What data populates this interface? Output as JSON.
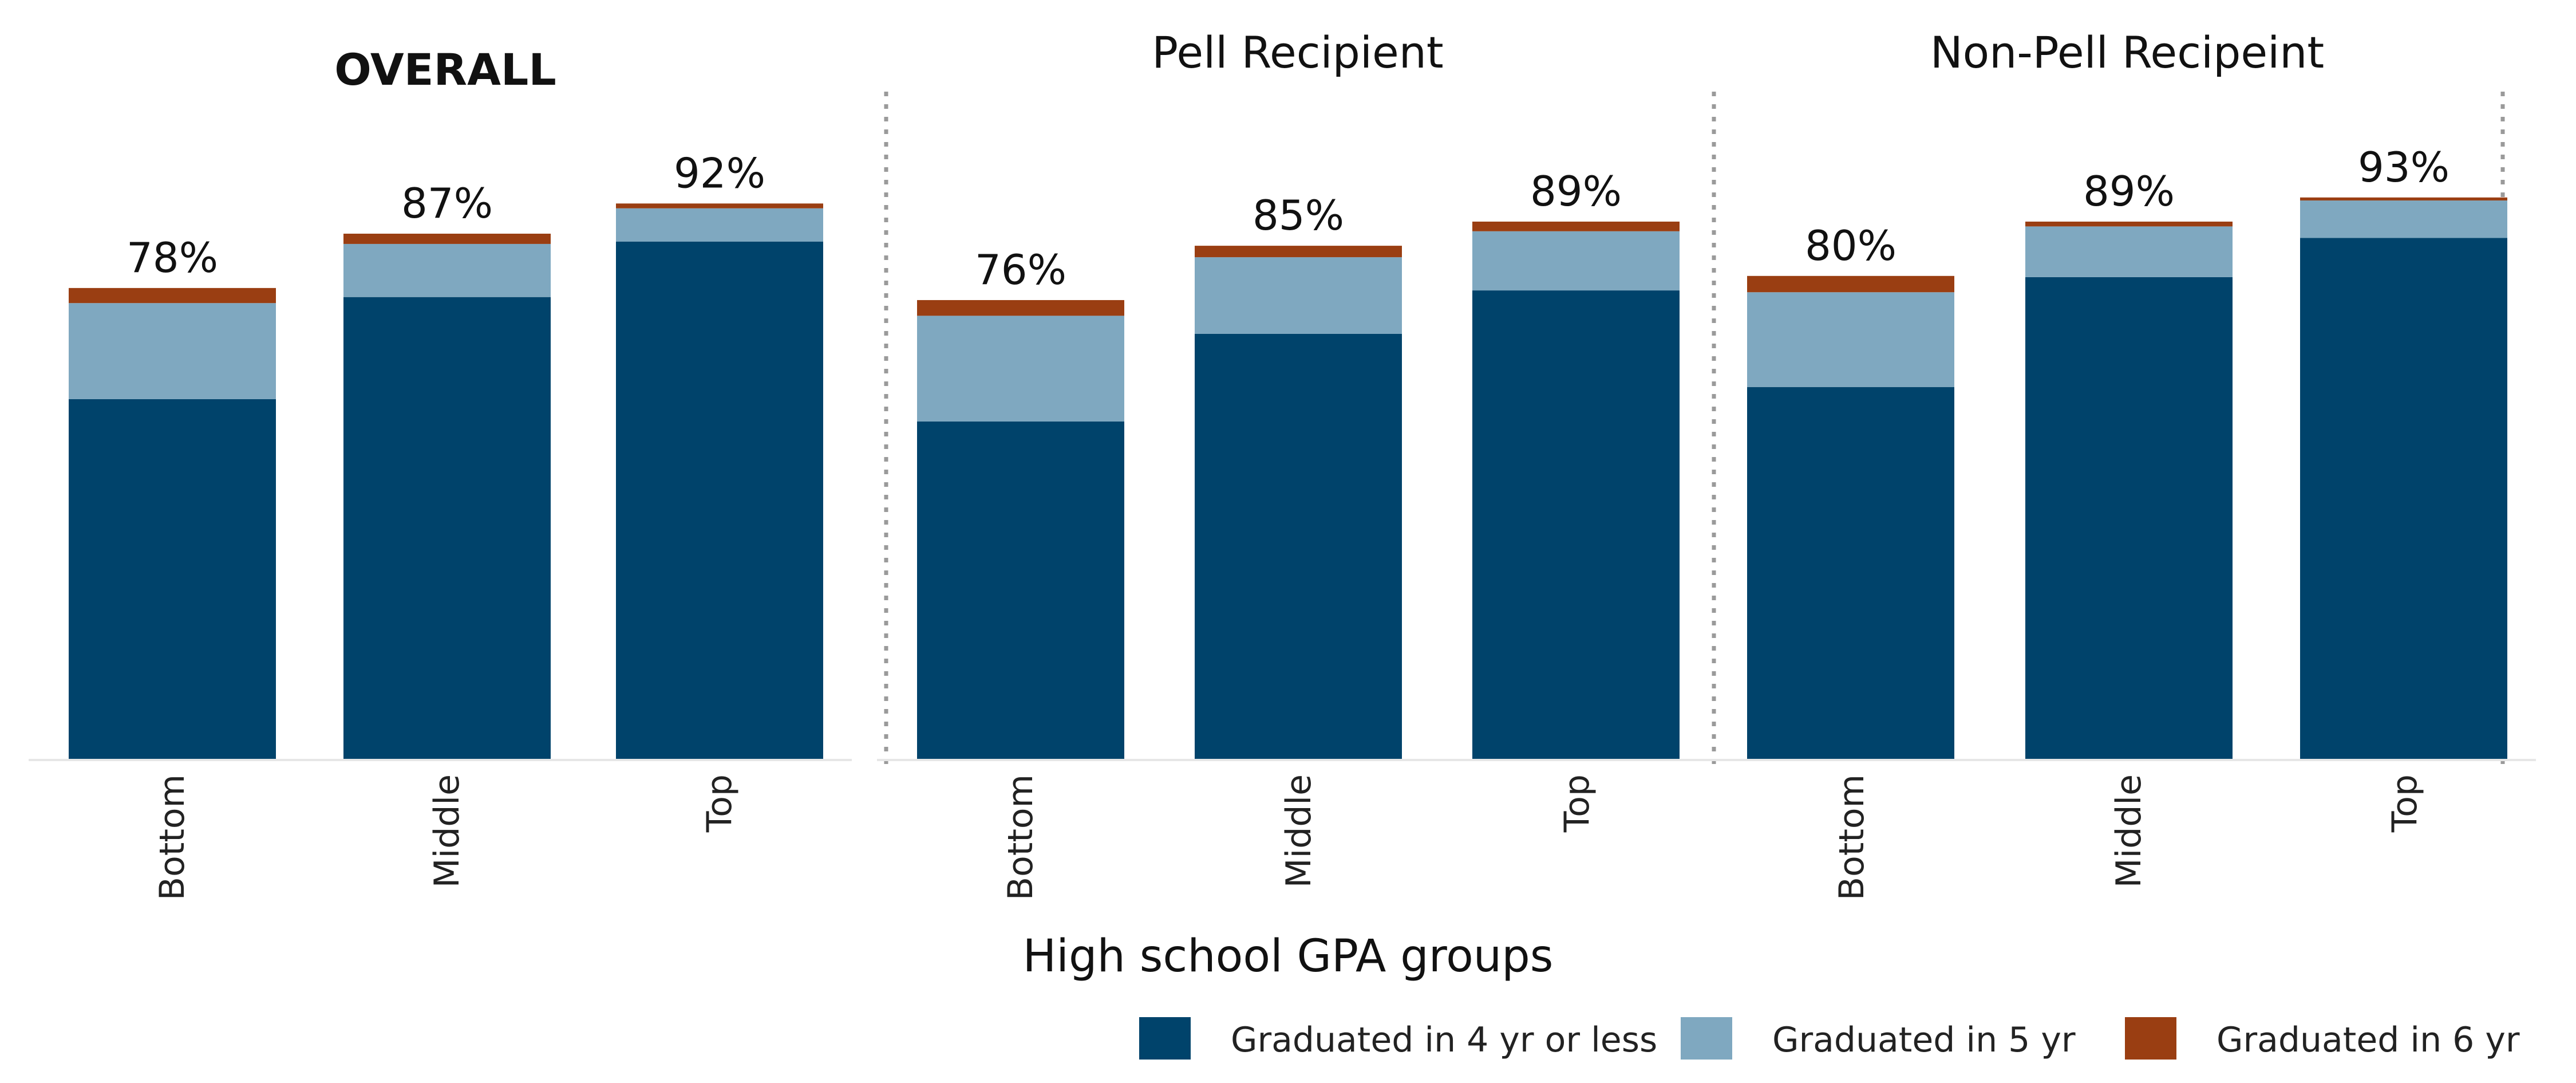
{
  "chart_data": {
    "type": "bar",
    "stacked": true,
    "x_title": "High school GPA groups",
    "categories": [
      "Bottom",
      "Middle",
      "Top"
    ],
    "series_names": [
      "Graduated in 4 yr or less",
      "Graduated in 5 yr",
      "Graduated in 6 yr"
    ],
    "colors": {
      "yr4": "#00436B",
      "yr5": "#7FA8C0",
      "yr6": "#9A3E12",
      "divider": "#9A9A9A",
      "baseline": "#E6E6E6"
    },
    "ylim": [
      0,
      100
    ],
    "panels": [
      {
        "title": "OVERALL",
        "bold": true,
        "bars": [
          {
            "category": "Bottom",
            "yr4": 59.6,
            "yr5": 15.9,
            "yr6": 2.5,
            "label": "78%"
          },
          {
            "category": "Middle",
            "yr4": 76.5,
            "yr5": 8.8,
            "yr6": 1.7,
            "label": "87%"
          },
          {
            "category": "Top",
            "yr4": 85.7,
            "yr5": 5.5,
            "yr6": 0.8,
            "label": "92%"
          }
        ]
      },
      {
        "title": "Pell Recipient",
        "bold": false,
        "bars": [
          {
            "category": "Bottom",
            "yr4": 55.9,
            "yr5": 17.5,
            "yr6": 2.6,
            "label": "76%"
          },
          {
            "category": "Middle",
            "yr4": 70.4,
            "yr5": 12.7,
            "yr6": 1.9,
            "label": "85%"
          },
          {
            "category": "Top",
            "yr4": 77.6,
            "yr5": 9.8,
            "yr6": 1.6,
            "label": "89%"
          }
        ]
      },
      {
        "title": "Non-Pell Recipeint",
        "bold": false,
        "bars": [
          {
            "category": "Bottom",
            "yr4": 61.6,
            "yr5": 15.7,
            "yr6": 2.7,
            "label": "80%"
          },
          {
            "category": "Middle",
            "yr4": 79.8,
            "yr5": 8.4,
            "yr6": 0.8,
            "label": "89%"
          },
          {
            "category": "Top",
            "yr4": 86.3,
            "yr5": 6.2,
            "yr6": 0.5,
            "label": "93%"
          }
        ]
      }
    ]
  }
}
